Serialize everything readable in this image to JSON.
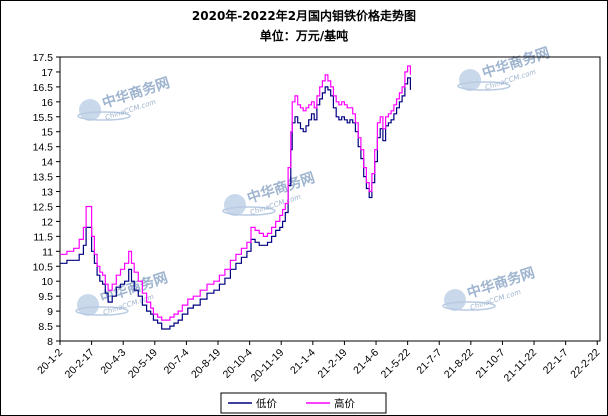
{
  "chart_data": {
    "type": "line",
    "title": "2020年-2022年2月国内钼铁价格走势图",
    "subtitle": "单位：万元/基吨",
    "xlabel": "",
    "ylabel": "",
    "ylim": [
      8,
      17.5
    ],
    "ytick_step": 0.5,
    "grid": false,
    "legend_position": "bottom-center",
    "x_tick_labels": [
      "20-1-2",
      "20-2-17",
      "20-4-3",
      "20-5-19",
      "20-7-4",
      "20-8-19",
      "20-10-4",
      "20-11-19",
      "21-1-4",
      "21-2-19",
      "21-4-6",
      "21-5-22",
      "21-7-7",
      "21-8-22",
      "21-10-7",
      "21-11-22",
      "22-1-7",
      "22-2-22"
    ],
    "x_tick_days": [
      0,
      46,
      92,
      138,
      184,
      230,
      276,
      322,
      368,
      414,
      460,
      506,
      552,
      598,
      644,
      690,
      736,
      782
    ],
    "x_range_days": [
      0,
      786
    ],
    "series": [
      {
        "name": "低价",
        "color": "#000080",
        "points": [
          [
            0,
            10.6
          ],
          [
            10,
            10.7
          ],
          [
            20,
            10.7
          ],
          [
            28,
            10.9
          ],
          [
            34,
            11.2
          ],
          [
            38,
            11.8
          ],
          [
            44,
            11.8
          ],
          [
            46,
            11.0
          ],
          [
            50,
            10.6
          ],
          [
            54,
            10.2
          ],
          [
            58,
            10.0
          ],
          [
            62,
            9.9
          ],
          [
            66,
            9.6
          ],
          [
            70,
            9.3
          ],
          [
            76,
            9.5
          ],
          [
            82,
            9.8
          ],
          [
            88,
            9.9
          ],
          [
            94,
            10.0
          ],
          [
            100,
            10.4
          ],
          [
            104,
            10.0
          ],
          [
            108,
            9.7
          ],
          [
            114,
            9.5
          ],
          [
            120,
            9.2
          ],
          [
            126,
            9.0
          ],
          [
            132,
            8.9
          ],
          [
            136,
            8.7
          ],
          [
            142,
            8.6
          ],
          [
            148,
            8.4
          ],
          [
            154,
            8.4
          ],
          [
            160,
            8.5
          ],
          [
            166,
            8.6
          ],
          [
            172,
            8.7
          ],
          [
            178,
            8.9
          ],
          [
            186,
            9.1
          ],
          [
            194,
            9.2
          ],
          [
            204,
            9.4
          ],
          [
            214,
            9.6
          ],
          [
            224,
            9.7
          ],
          [
            232,
            9.9
          ],
          [
            240,
            10.1
          ],
          [
            248,
            10.4
          ],
          [
            256,
            10.6
          ],
          [
            264,
            10.8
          ],
          [
            272,
            11.0
          ],
          [
            278,
            11.4
          ],
          [
            284,
            11.3
          ],
          [
            290,
            11.2
          ],
          [
            296,
            11.2
          ],
          [
            302,
            11.3
          ],
          [
            308,
            11.5
          ],
          [
            314,
            11.7
          ],
          [
            320,
            11.8
          ],
          [
            324,
            12.0
          ],
          [
            328,
            12.3
          ],
          [
            332,
            13.2
          ],
          [
            336,
            14.4
          ],
          [
            338,
            15.3
          ],
          [
            342,
            15.5
          ],
          [
            346,
            15.3
          ],
          [
            350,
            15.1
          ],
          [
            354,
            15.0
          ],
          [
            358,
            15.2
          ],
          [
            362,
            15.4
          ],
          [
            366,
            15.6
          ],
          [
            370,
            15.4
          ],
          [
            374,
            15.9
          ],
          [
            378,
            16.1
          ],
          [
            382,
            16.3
          ],
          [
            386,
            16.5
          ],
          [
            390,
            16.4
          ],
          [
            394,
            16.2
          ],
          [
            398,
            15.8
          ],
          [
            402,
            15.5
          ],
          [
            406,
            15.4
          ],
          [
            410,
            15.5
          ],
          [
            414,
            15.4
          ],
          [
            418,
            15.3
          ],
          [
            422,
            15.4
          ],
          [
            426,
            15.3
          ],
          [
            430,
            15.0
          ],
          [
            434,
            14.5
          ],
          [
            438,
            14.1
          ],
          [
            442,
            13.5
          ],
          [
            446,
            13.1
          ],
          [
            450,
            12.8
          ],
          [
            454,
            13.3
          ],
          [
            458,
            14.0
          ],
          [
            462,
            14.8
          ],
          [
            466,
            15.1
          ],
          [
            470,
            14.7
          ],
          [
            474,
            15.2
          ],
          [
            478,
            15.3
          ],
          [
            482,
            15.4
          ],
          [
            486,
            15.6
          ],
          [
            490,
            15.8
          ],
          [
            494,
            16.0
          ],
          [
            498,
            16.2
          ],
          [
            502,
            16.6
          ],
          [
            506,
            16.8
          ],
          [
            510,
            16.4
          ]
        ]
      },
      {
        "name": "高价",
        "color": "#ff00ff",
        "points": [
          [
            0,
            10.9
          ],
          [
            10,
            11.0
          ],
          [
            20,
            11.1
          ],
          [
            28,
            11.4
          ],
          [
            34,
            11.8
          ],
          [
            38,
            12.5
          ],
          [
            44,
            12.5
          ],
          [
            46,
            11.5
          ],
          [
            50,
            10.9
          ],
          [
            54,
            10.5
          ],
          [
            58,
            10.3
          ],
          [
            62,
            10.2
          ],
          [
            66,
            9.9
          ],
          [
            70,
            9.7
          ],
          [
            76,
            9.9
          ],
          [
            82,
            10.2
          ],
          [
            88,
            10.4
          ],
          [
            94,
            10.6
          ],
          [
            100,
            11.0
          ],
          [
            104,
            10.6
          ],
          [
            108,
            10.3
          ],
          [
            114,
            10.0
          ],
          [
            120,
            9.6
          ],
          [
            126,
            9.3
          ],
          [
            132,
            9.1
          ],
          [
            136,
            8.9
          ],
          [
            142,
            8.8
          ],
          [
            148,
            8.7
          ],
          [
            154,
            8.7
          ],
          [
            160,
            8.8
          ],
          [
            166,
            8.9
          ],
          [
            172,
            9.0
          ],
          [
            178,
            9.2
          ],
          [
            186,
            9.4
          ],
          [
            194,
            9.5
          ],
          [
            204,
            9.7
          ],
          [
            214,
            9.9
          ],
          [
            224,
            10.0
          ],
          [
            232,
            10.2
          ],
          [
            240,
            10.4
          ],
          [
            248,
            10.7
          ],
          [
            256,
            10.9
          ],
          [
            264,
            11.1
          ],
          [
            272,
            11.3
          ],
          [
            278,
            11.8
          ],
          [
            284,
            11.7
          ],
          [
            290,
            11.6
          ],
          [
            296,
            11.5
          ],
          [
            302,
            11.6
          ],
          [
            308,
            11.8
          ],
          [
            314,
            12.0
          ],
          [
            320,
            12.2
          ],
          [
            324,
            12.4
          ],
          [
            328,
            12.6
          ],
          [
            332,
            13.8
          ],
          [
            336,
            15.0
          ],
          [
            338,
            16.0
          ],
          [
            342,
            16.2
          ],
          [
            346,
            15.9
          ],
          [
            350,
            15.8
          ],
          [
            354,
            15.7
          ],
          [
            358,
            15.8
          ],
          [
            362,
            15.9
          ],
          [
            366,
            16.0
          ],
          [
            370,
            15.8
          ],
          [
            374,
            16.2
          ],
          [
            378,
            16.5
          ],
          [
            382,
            16.7
          ],
          [
            386,
            16.9
          ],
          [
            390,
            16.7
          ],
          [
            394,
            16.5
          ],
          [
            398,
            16.2
          ],
          [
            402,
            16.0
          ],
          [
            406,
            15.9
          ],
          [
            410,
            16.0
          ],
          [
            414,
            15.9
          ],
          [
            418,
            15.8
          ],
          [
            422,
            15.8
          ],
          [
            426,
            15.6
          ],
          [
            430,
            15.3
          ],
          [
            434,
            14.8
          ],
          [
            438,
            14.4
          ],
          [
            442,
            13.8
          ],
          [
            446,
            13.3
          ],
          [
            450,
            13.0
          ],
          [
            454,
            13.6
          ],
          [
            458,
            14.4
          ],
          [
            462,
            15.3
          ],
          [
            466,
            15.5
          ],
          [
            470,
            15.1
          ],
          [
            474,
            15.5
          ],
          [
            478,
            15.6
          ],
          [
            482,
            15.7
          ],
          [
            486,
            15.9
          ],
          [
            490,
            16.1
          ],
          [
            494,
            16.3
          ],
          [
            498,
            16.5
          ],
          [
            502,
            17.0
          ],
          [
            506,
            17.2
          ],
          [
            510,
            16.9
          ]
        ]
      }
    ]
  },
  "watermark": {
    "cn": "中华商务网",
    "en": "ChinaCCM.com"
  }
}
